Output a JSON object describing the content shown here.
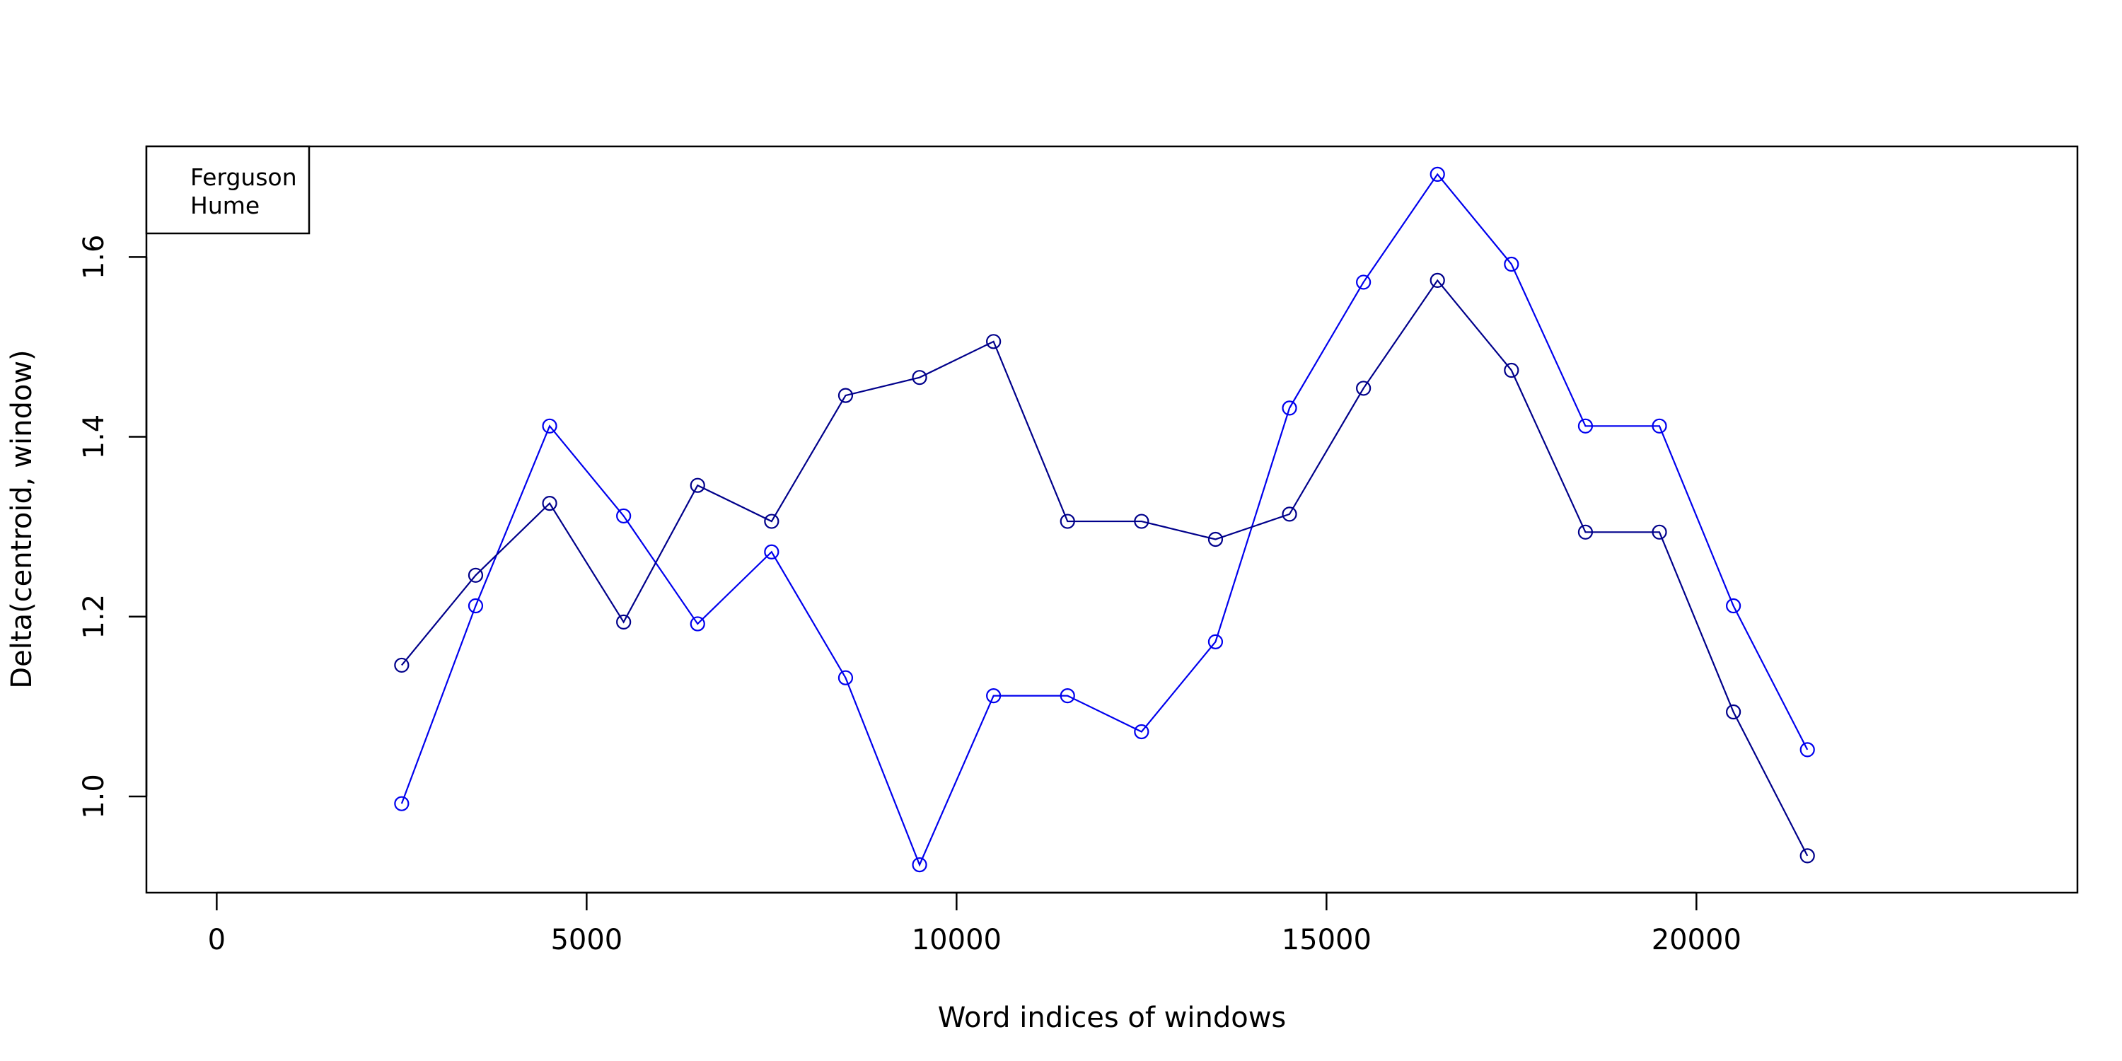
{
  "chart_data": {
    "type": "line",
    "title": "",
    "xlabel": "Word indices of windows",
    "ylabel": "Delta(centroid, window)",
    "xlim": [
      -950,
      25150
    ],
    "ylim": [
      0.893,
      1.723
    ],
    "x_ticks": [
      0,
      5000,
      10000,
      15000,
      20000
    ],
    "x_tick_labels": [
      "0",
      "5000",
      "10000",
      "15000",
      "20000"
    ],
    "y_ticks": [
      1.0,
      1.2,
      1.4,
      1.6
    ],
    "y_tick_labels": [
      "1.0",
      "1.2",
      "1.4",
      "1.6"
    ],
    "grid": false,
    "legend_position": "top-left",
    "x": [
      2500,
      3500,
      4500,
      5500,
      6500,
      7500,
      8500,
      9500,
      10500,
      11500,
      12500,
      13500,
      14500,
      15500,
      16500,
      17500,
      18500,
      19500,
      20500,
      21500
    ],
    "series": [
      {
        "name": "Ferguson",
        "color": "#0000ee",
        "values": [
          0.992,
          1.212,
          1.412,
          1.312,
          1.192,
          1.272,
          1.132,
          0.924,
          1.112,
          1.112,
          1.072,
          1.172,
          1.432,
          1.572,
          1.692,
          1.592,
          1.412,
          1.412,
          1.212,
          1.052
        ]
      },
      {
        "name": "Hume",
        "color": "#00008b",
        "values": [
          1.146,
          1.246,
          1.326,
          1.194,
          1.346,
          1.306,
          1.446,
          1.466,
          1.506,
          1.306,
          1.306,
          1.286,
          1.314,
          1.454,
          1.574,
          1.474,
          1.294,
          1.294,
          1.094,
          0.934
        ]
      }
    ]
  }
}
